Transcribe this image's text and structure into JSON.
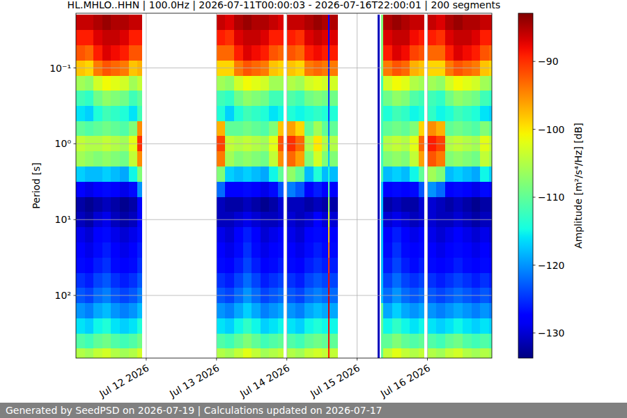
{
  "chart_data": {
    "type": "heatmap",
    "title": "HL.MHLO..HHN | 100.0Hz | 2026-07-11T00:00:03 - 2026-07-16T22:00:01 | 200 segments",
    "y_label": "Period [s]",
    "footer": "Generated by SeedPSD on 2026-07-19 | Calculations updated on 2026-07-17",
    "log": "y",
    "grid": true,
    "xlim": [
      "2026-07-11T00:00:03",
      "2026-07-16T22:00:01"
    ],
    "xticks": [
      {
        "value": "2026-07-12",
        "label": "Jul 12 2026"
      },
      {
        "value": "2026-07-13",
        "label": "Jul 13 2026"
      },
      {
        "value": "2026-07-14",
        "label": "Jul 14 2026"
      },
      {
        "value": "2026-07-15",
        "label": "Jul 15 2026"
      },
      {
        "value": "2026-07-16",
        "label": "Jul 16 2026"
      }
    ],
    "ylim": [
      0.019,
      670
    ],
    "yticks": [
      {
        "value": 0.1,
        "label": "10⁻¹"
      },
      {
        "value": 1,
        "label": "10⁰"
      },
      {
        "value": 10,
        "label": "10¹"
      },
      {
        "value": 100,
        "label": "10²"
      }
    ],
    "colorbar": {
      "label": "Amplitude [m²/s⁴/Hz] [dB]",
      "range": [
        -133.7,
        -82.9
      ],
      "ticks": [
        {
          "value": -90,
          "label": "−90"
        },
        {
          "value": -100,
          "label": "−100"
        },
        {
          "value": -110,
          "label": "−110"
        },
        {
          "value": -120,
          "label": "−120"
        },
        {
          "value": -130,
          "label": "−130"
        }
      ]
    },
    "x_edges": [
      "2026-07-11T00:00",
      "2026-07-11T03:00",
      "2026-07-11T06:00",
      "2026-07-11T09:00",
      "2026-07-11T12:00",
      "2026-07-11T15:00",
      "2026-07-11T18:00",
      "2026-07-11T21:00",
      "2026-07-11T22:30",
      "2026-07-13T00:00",
      "2026-07-13T03:00",
      "2026-07-13T06:00",
      "2026-07-13T09:00",
      "2026-07-13T12:00",
      "2026-07-13T15:00",
      "2026-07-13T18:00",
      "2026-07-13T21:00",
      "2026-07-13T22:45",
      "2026-07-14T00:00",
      "2026-07-14T03:00",
      "2026-07-14T06:00",
      "2026-07-14T09:00",
      "2026-07-14T12:00",
      "2026-07-14T14:00",
      "2026-07-14T14:40",
      "2026-07-14T17:15",
      "2026-07-15T07:00",
      "2026-07-15T07:40",
      "2026-07-15T08:10",
      "2026-07-15T08:50",
      "2026-07-15T12:00",
      "2026-07-15T15:00",
      "2026-07-15T18:00",
      "2026-07-15T21:00",
      "2026-07-15T22:40",
      "2026-07-16T00:00",
      "2026-07-16T03:00",
      "2026-07-16T06:00",
      "2026-07-16T09:00",
      "2026-07-16T12:00",
      "2026-07-16T15:00",
      "2026-07-16T18:00",
      "2026-07-16T21:00",
      "2026-07-16T22:00"
    ],
    "periods": [
      0.025,
      0.04,
      0.063,
      0.1,
      0.16,
      0.25,
      0.4,
      0.63,
      1,
      1.6,
      2.5,
      4,
      6.3,
      10,
      16,
      25,
      40,
      63,
      100,
      160,
      250,
      400,
      630
    ],
    "cells": [
      [
        -86,
        -86,
        -85,
        -84,
        -85,
        -85,
        -86,
        -86,
        null,
        -86,
        -87,
        -85,
        -84,
        -85,
        -85,
        -86,
        -87,
        null,
        -86,
        -86,
        -85,
        -84,
        -85,
        -128,
        -85,
        null,
        -131,
        null,
        -108,
        -85,
        -84,
        -85,
        -86,
        -86,
        null,
        -86,
        -87,
        -85,
        -84,
        -85,
        -85,
        -86,
        -86
      ],
      [
        -89,
        -89,
        -87,
        -86,
        -86,
        -87,
        -89,
        -89,
        null,
        -89,
        -90,
        -87,
        -86,
        -86,
        -87,
        -89,
        -89,
        null,
        -89,
        -90,
        -87,
        -86,
        -87,
        -128,
        -87,
        null,
        -131,
        null,
        -108,
        -87,
        -86,
        -86,
        -88,
        -89,
        null,
        -89,
        -90,
        -87,
        -86,
        -86,
        -87,
        -89,
        -89
      ],
      [
        -92,
        -93,
        -89,
        -87,
        -88,
        -89,
        -92,
        -92,
        null,
        -93,
        -93,
        -89,
        -87,
        -88,
        -89,
        -92,
        -93,
        null,
        -92,
        -93,
        -89,
        -88,
        -89,
        -127,
        -89,
        null,
        -131,
        null,
        -108,
        -89,
        -87,
        -88,
        -91,
        -92,
        null,
        -93,
        -93,
        -89,
        -87,
        -88,
        -89,
        -92,
        -93
      ],
      [
        -98,
        -99,
        -94,
        -92,
        -93,
        -94,
        -98,
        -97,
        null,
        -99,
        -99,
        -94,
        -92,
        -93,
        -94,
        -98,
        -99,
        null,
        -98,
        -99,
        -94,
        -93,
        -94,
        -126,
        -94,
        null,
        -131,
        null,
        -108,
        -94,
        -92,
        -93,
        -97,
        -98,
        null,
        -99,
        -99,
        -94,
        -92,
        -93,
        -94,
        -98,
        -99
      ],
      [
        -106,
        -107,
        -103,
        -101,
        -102,
        -103,
        -106,
        -104,
        null,
        -106,
        -107,
        -103,
        -101,
        -102,
        -103,
        -106,
        -106,
        null,
        -105,
        -106,
        -103,
        -102,
        -103,
        -126,
        -103,
        null,
        -131,
        null,
        -112,
        -103,
        -101,
        -102,
        -105,
        -106,
        null,
        -106,
        -107,
        -103,
        -101,
        -102,
        -103,
        -106,
        -107
      ],
      [
        -112,
        -113,
        -109,
        -107,
        -108,
        -109,
        -112,
        -110,
        null,
        -112,
        -113,
        -109,
        -107,
        -108,
        -109,
        -112,
        -112,
        null,
        -111,
        -112,
        -109,
        -108,
        -109,
        -125,
        -109,
        null,
        -131,
        null,
        -112,
        -109,
        -107,
        -108,
        -111,
        -112,
        null,
        -112,
        -113,
        -109,
        -107,
        -108,
        -109,
        -112,
        -113
      ],
      [
        -116,
        -117,
        -114,
        -112,
        -113,
        -114,
        -116,
        -112,
        null,
        -114,
        -117,
        -114,
        -112,
        -113,
        -114,
        -116,
        -115,
        null,
        -114,
        -115,
        -114,
        -113,
        -114,
        -124,
        -114,
        null,
        -131,
        null,
        -112,
        -114,
        -112,
        -113,
        -115,
        -114,
        null,
        -113,
        -115,
        -114,
        -112,
        -113,
        -114,
        -116,
        -117
      ],
      [
        -110,
        -111,
        -110,
        -109,
        -110,
        -111,
        -108,
        -95,
        null,
        -97,
        -110,
        -110,
        -109,
        -110,
        -111,
        -108,
        -98,
        null,
        -96,
        -99,
        -110,
        -106,
        -110,
        -122,
        -110,
        null,
        -131,
        null,
        -112,
        -110,
        -109,
        -110,
        -108,
        -99,
        null,
        -95,
        -97,
        -110,
        -109,
        -110,
        -111,
        -108,
        -110
      ],
      [
        -104,
        -105,
        -105,
        -104,
        -105,
        -106,
        -102,
        -90,
        null,
        -91,
        -104,
        -105,
        -104,
        -105,
        -106,
        -102,
        -92,
        null,
        -90,
        -93,
        -105,
        -100,
        -105,
        -120,
        -105,
        null,
        -131,
        null,
        -112,
        -105,
        -104,
        -105,
        -102,
        -93,
        null,
        -89,
        -91,
        -105,
        -104,
        -105,
        -106,
        -102,
        -104
      ],
      [
        -106,
        -107,
        -108,
        -107,
        -108,
        -109,
        -104,
        -95,
        null,
        -94,
        -106,
        -108,
        -107,
        -108,
        -109,
        -104,
        -95,
        null,
        -93,
        -96,
        -108,
        -103,
        -108,
        -118,
        -108,
        null,
        -131,
        null,
        -112,
        -108,
        -107,
        -108,
        -104,
        -96,
        null,
        -92,
        -94,
        -108,
        -107,
        -108,
        -109,
        -104,
        -106
      ],
      [
        -117,
        -118,
        -118,
        -117,
        -118,
        -119,
        -115,
        -108,
        null,
        -108,
        -117,
        -118,
        -117,
        -118,
        -119,
        -115,
        -110,
        null,
        -107,
        -110,
        -118,
        -114,
        -118,
        -114,
        -118,
        null,
        -131,
        null,
        -112,
        -118,
        -117,
        -118,
        -115,
        -110,
        null,
        -106,
        -108,
        -118,
        -117,
        -118,
        -119,
        -115,
        -117
      ],
      [
        -128,
        -129,
        -128,
        -127,
        -128,
        -129,
        -127,
        -120,
        null,
        -122,
        -128,
        -128,
        -127,
        -128,
        -129,
        -127,
        -123,
        null,
        -121,
        -123,
        -128,
        -126,
        -128,
        -110,
        -128,
        null,
        -131,
        null,
        -118,
        -128,
        -127,
        -128,
        -127,
        -123,
        null,
        -120,
        -122,
        -128,
        -127,
        -128,
        -129,
        -127,
        -128
      ],
      [
        -132,
        -133,
        -132,
        -131,
        -132,
        -133,
        -132,
        -128,
        null,
        -131,
        -132,
        -132,
        -131,
        -132,
        -133,
        -132,
        -130,
        null,
        -131,
        -131,
        -132,
        -131,
        -132,
        -106,
        -132,
        null,
        -131,
        null,
        -118,
        -132,
        -131,
        -132,
        -132,
        -130,
        null,
        -130,
        -131,
        -132,
        -131,
        -132,
        -133,
        -132,
        -132
      ],
      [
        -131,
        -132,
        -130,
        -129,
        -131,
        -132,
        -131,
        -128,
        null,
        -131,
        -131,
        -130,
        -129,
        -130,
        -131,
        -131,
        -130,
        null,
        -130,
        -131,
        -130,
        -128,
        -130,
        -102,
        -130,
        null,
        -131,
        null,
        -118,
        -130,
        -129,
        -130,
        -131,
        -130,
        null,
        -130,
        -131,
        -131,
        -130,
        -131,
        -132,
        -131,
        -131
      ],
      [
        -129,
        -130,
        -128,
        -127,
        -129,
        -130,
        -129,
        -127,
        null,
        -129,
        -130,
        -128,
        -126,
        -128,
        -130,
        -129,
        -128,
        null,
        -129,
        -130,
        -128,
        -127,
        -128,
        -98,
        -128,
        null,
        -131,
        null,
        -118,
        -128,
        -126,
        -128,
        -129,
        -128,
        null,
        -129,
        -130,
        -129,
        -128,
        -129,
        -130,
        -129,
        -130
      ],
      [
        -128,
        -129,
        -127,
        -126,
        -128,
        -129,
        -128,
        -126,
        null,
        -128,
        -129,
        -127,
        -125,
        -127,
        -129,
        -128,
        -127,
        null,
        -128,
        -129,
        -127,
        -126,
        -127,
        -94,
        -127,
        null,
        -131,
        null,
        -118,
        -127,
        -125,
        -127,
        -128,
        -127,
        null,
        -128,
        -129,
        -128,
        -127,
        -128,
        -129,
        -128,
        -129
      ],
      [
        -127,
        -128,
        -126,
        -125,
        -127,
        -128,
        -127,
        -125,
        null,
        -127,
        -128,
        -126,
        -124,
        -126,
        -128,
        -127,
        -126,
        null,
        -127,
        -128,
        -126,
        -125,
        -126,
        -90,
        -126,
        null,
        -131,
        null,
        -118,
        -126,
        -124,
        -126,
        -127,
        -126,
        null,
        -127,
        -128,
        -127,
        -126,
        -127,
        -128,
        -127,
        -128
      ],
      [
        -125,
        -126,
        -124,
        -123,
        -125,
        -126,
        -125,
        -123,
        null,
        -125,
        -126,
        -124,
        -122,
        -124,
        -126,
        -125,
        -124,
        null,
        -125,
        -126,
        -124,
        -123,
        -124,
        -88,
        -124,
        null,
        -131,
        null,
        -118,
        -124,
        -122,
        -124,
        -125,
        -124,
        null,
        -125,
        -126,
        -125,
        -124,
        -125,
        -126,
        -125,
        -126
      ],
      [
        -123,
        -124,
        -122,
        -121,
        -123,
        -124,
        -123,
        -121,
        null,
        -123,
        -124,
        -122,
        -120,
        -122,
        -124,
        -123,
        -122,
        null,
        -123,
        -124,
        -122,
        -121,
        -122,
        -87,
        -122,
        null,
        -131,
        null,
        -118,
        -122,
        -120,
        -122,
        -123,
        -122,
        null,
        -123,
        -124,
        -123,
        -122,
        -123,
        -124,
        -123,
        -124
      ],
      [
        -120,
        -121,
        -119,
        -118,
        -120,
        -121,
        -120,
        -118,
        null,
        -120,
        -121,
        -119,
        -117,
        -119,
        -121,
        -120,
        -119,
        null,
        -120,
        -121,
        -119,
        -118,
        -119,
        -87,
        -119,
        null,
        -131,
        null,
        -110,
        -119,
        -117,
        -119,
        -120,
        -119,
        null,
        -120,
        -121,
        -120,
        -119,
        -120,
        -121,
        -120,
        -121
      ],
      [
        -116,
        -117,
        -115,
        -114,
        -116,
        -117,
        -116,
        -114,
        null,
        -116,
        -117,
        -115,
        -113,
        -115,
        -117,
        -116,
        -115,
        null,
        -116,
        -117,
        -115,
        -114,
        -115,
        -88,
        -115,
        null,
        -131,
        null,
        -110,
        -115,
        -113,
        -115,
        -116,
        -115,
        null,
        -116,
        -117,
        -116,
        -115,
        -116,
        -117,
        -116,
        -117
      ],
      [
        -111,
        -112,
        -110,
        -109,
        -111,
        -112,
        -111,
        -109,
        null,
        -111,
        -112,
        -110,
        -108,
        -110,
        -112,
        -111,
        -110,
        null,
        -111,
        -112,
        -110,
        -109,
        -110,
        -88,
        -110,
        null,
        -131,
        null,
        -110,
        -110,
        -108,
        -110,
        -111,
        -110,
        null,
        -111,
        -112,
        -110,
        -109,
        -111,
        -112,
        -111,
        -112
      ],
      [
        -105,
        -106,
        -104,
        -103,
        -105,
        -106,
        -105,
        -103,
        null,
        -105,
        -106,
        -104,
        -102,
        -104,
        -106,
        -105,
        -104,
        null,
        -105,
        -106,
        -104,
        -103,
        -104,
        -89,
        -104,
        null,
        -131,
        null,
        -110,
        -104,
        -102,
        -104,
        -105,
        -104,
        null,
        -105,
        -106,
        -104,
        -103,
        -105,
        -106,
        -105,
        -106
      ]
    ]
  }
}
